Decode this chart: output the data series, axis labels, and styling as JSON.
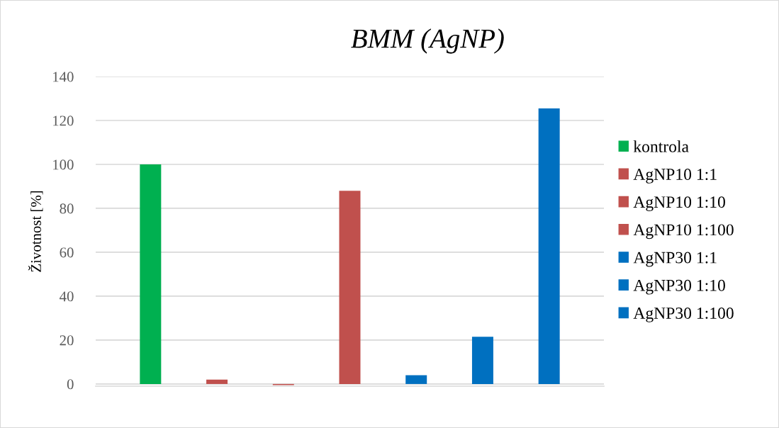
{
  "chart_data": {
    "type": "bar",
    "title": "BMM (AgNP)",
    "ylabel": "Životnost [%]",
    "categories": [
      null
    ],
    "series": [
      {
        "name": "kontrola",
        "color": "#00b050",
        "values": [
          100
        ]
      },
      {
        "name": "AgNP10 1:1",
        "color": "#c0504d",
        "values": [
          2
        ]
      },
      {
        "name": "AgNP10 1:10",
        "color": "#c0504d",
        "values": [
          -0.5
        ]
      },
      {
        "name": "AgNP10 1:100",
        "color": "#c0504d",
        "values": [
          88
        ]
      },
      {
        "name": "AgNP30 1:1",
        "color": "#0070c0",
        "values": [
          4
        ]
      },
      {
        "name": "AgNP30 1:10",
        "color": "#0070c0",
        "values": [
          21.5
        ]
      },
      {
        "name": "AgNP30 1:100",
        "color": "#0070c0",
        "values": [
          125.5
        ]
      }
    ],
    "ylim": [
      -1,
      140
    ],
    "yticks": [
      0,
      20,
      40,
      60,
      80,
      100,
      120,
      140
    ],
    "grid": "y",
    "legend": "right"
  }
}
